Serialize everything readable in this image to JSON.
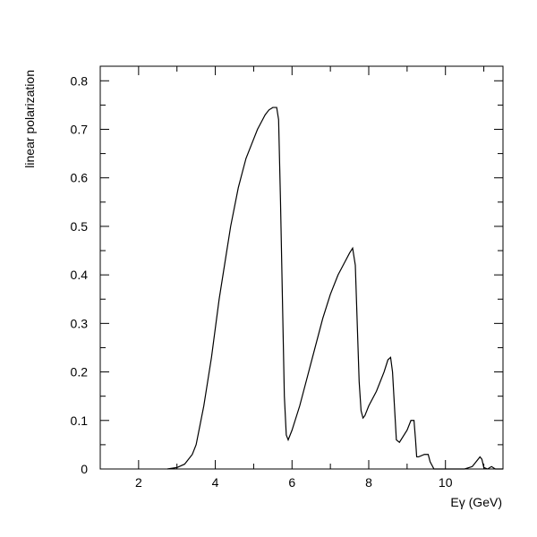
{
  "chart_data": {
    "type": "line",
    "title": "",
    "xlabel": "Eγ (GeV)",
    "ylabel": "linear polarization",
    "xlim": [
      1,
      11.5
    ],
    "ylim": [
      0,
      0.83
    ],
    "grid": false,
    "x_ticks": [
      2,
      4,
      6,
      8,
      10
    ],
    "y_ticks": [
      0,
      0.1,
      0.2,
      0.3,
      0.4,
      0.5,
      0.6,
      0.7,
      0.8
    ],
    "y_tick_labels": [
      "0",
      "0.1",
      "0.2",
      "0.3",
      "0.4",
      "0.5",
      "0.6",
      "0.7",
      "0.8"
    ],
    "x_tick_labels": [
      "2",
      "4",
      "6",
      "8",
      "10"
    ],
    "series": [
      {
        "color": "#000000",
        "x": [
          2.75,
          3.0,
          3.2,
          3.4,
          3.5,
          3.6,
          3.7,
          3.8,
          3.9,
          4.0,
          4.1,
          4.2,
          4.3,
          4.4,
          4.5,
          4.6,
          4.7,
          4.8,
          4.9,
          5.0,
          5.1,
          5.2,
          5.3,
          5.4,
          5.5,
          5.6,
          5.65,
          5.7,
          5.75,
          5.8,
          5.85,
          5.9,
          6.0,
          6.2,
          6.4,
          6.6,
          6.8,
          7.0,
          7.2,
          7.4,
          7.5,
          7.58,
          7.65,
          7.7,
          7.75,
          7.8,
          7.85,
          7.9,
          8.0,
          8.2,
          8.4,
          8.5,
          8.57,
          8.62,
          8.67,
          8.72,
          8.8,
          9.0,
          9.1,
          9.18,
          9.22,
          9.25,
          9.3,
          9.45,
          9.55,
          9.6,
          9.7,
          10.0,
          10.5,
          10.7,
          10.8,
          10.9,
          10.95,
          11.0,
          11.1,
          11.2,
          11.3,
          11.5
        ],
        "y": [
          0.0,
          0.003,
          0.01,
          0.03,
          0.05,
          0.09,
          0.13,
          0.18,
          0.23,
          0.29,
          0.35,
          0.4,
          0.45,
          0.5,
          0.54,
          0.58,
          0.61,
          0.64,
          0.66,
          0.68,
          0.7,
          0.715,
          0.73,
          0.74,
          0.745,
          0.745,
          0.72,
          0.55,
          0.35,
          0.15,
          0.07,
          0.06,
          0.08,
          0.13,
          0.19,
          0.25,
          0.31,
          0.36,
          0.4,
          0.43,
          0.445,
          0.455,
          0.42,
          0.3,
          0.18,
          0.12,
          0.105,
          0.11,
          0.13,
          0.16,
          0.2,
          0.225,
          0.23,
          0.2,
          0.13,
          0.06,
          0.055,
          0.08,
          0.1,
          0.1,
          0.06,
          0.025,
          0.025,
          0.03,
          0.03,
          0.015,
          0.0,
          0.0,
          0.0,
          0.005,
          0.015,
          0.025,
          0.02,
          0.003,
          0.0,
          0.005,
          0.0,
          0.0
        ]
      }
    ]
  }
}
